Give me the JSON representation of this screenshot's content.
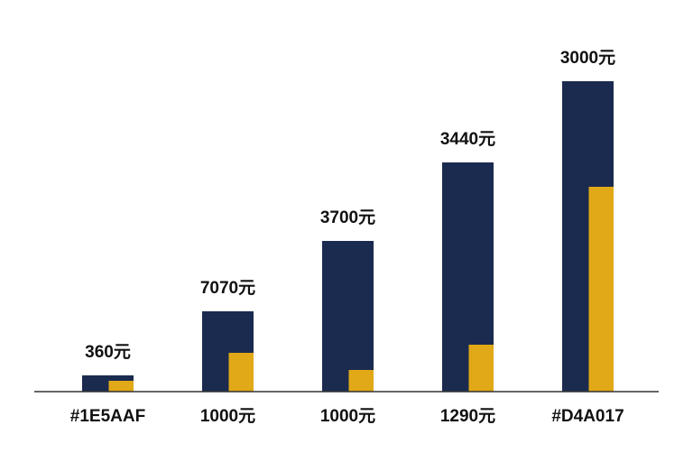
{
  "chart_data": {
    "type": "bar",
    "categories": [
      "#1E5AAF",
      "1000元",
      "1000元",
      "1290元",
      "#D4A017"
    ],
    "annotations": [
      "360元",
      "7070元",
      "3700元",
      "3440元",
      "3000元"
    ],
    "series": [
      {
        "color": "#1b2b4f",
        "values": [
          18,
          89,
          167,
          254,
          344
        ]
      },
      {
        "color": "#e1a918",
        "values": [
          12,
          43,
          24,
          52,
          227
        ]
      }
    ],
    "ylim": [
      0,
      350
    ]
  }
}
